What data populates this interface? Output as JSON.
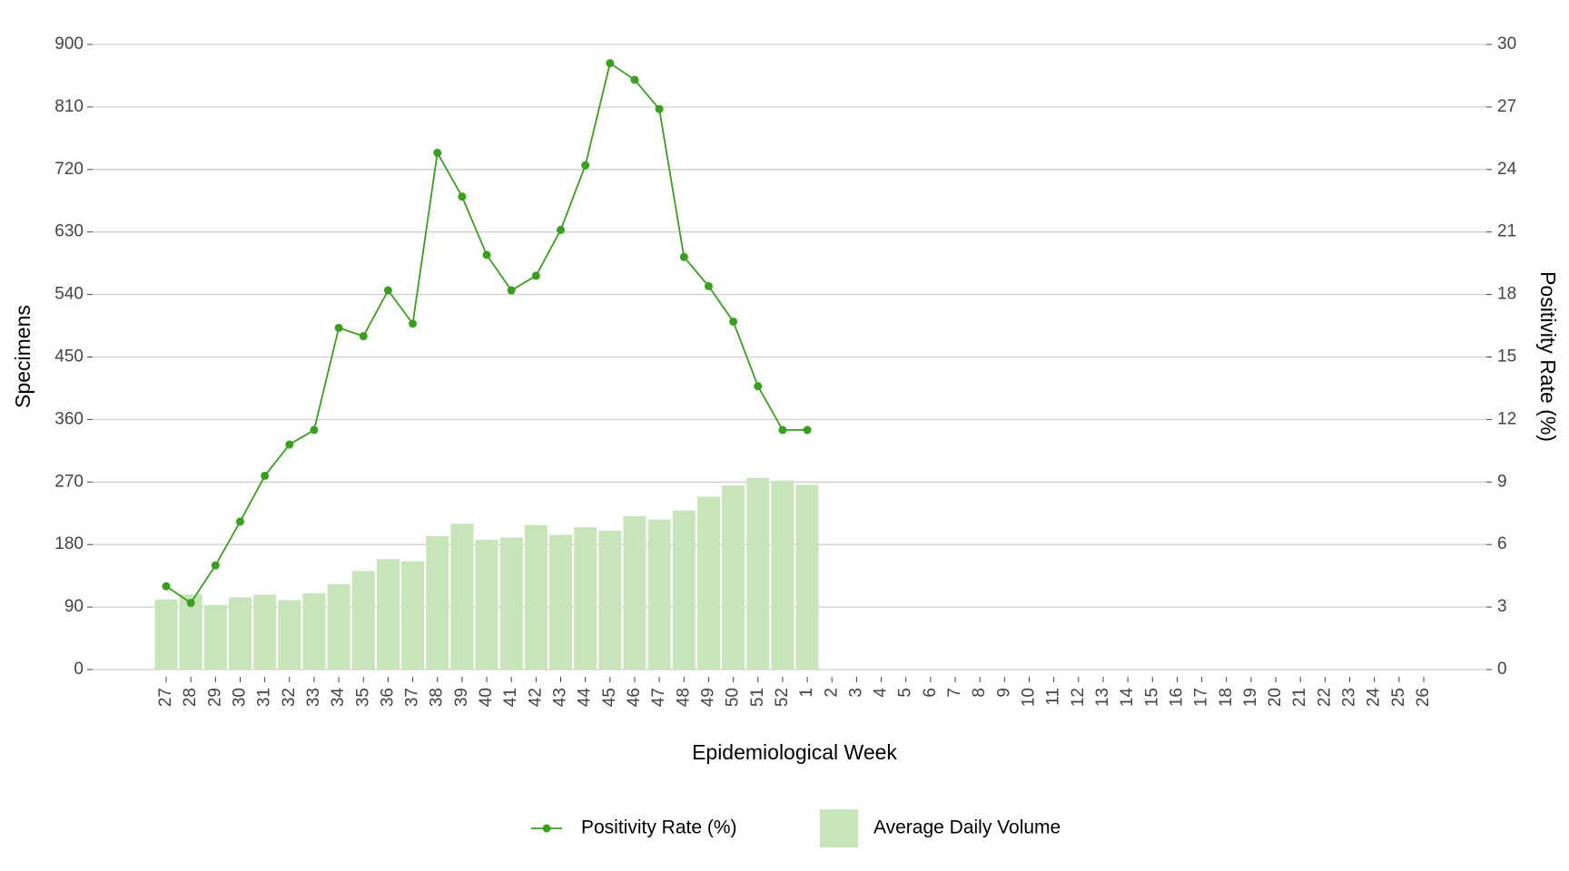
{
  "chart_data": {
    "type": "bar-line",
    "x_label": "Epidemiological Week",
    "y_label": "Specimens",
    "y2_label": "Positivity Rate (%)",
    "categories": [
      "27",
      "28",
      "29",
      "30",
      "31",
      "32",
      "33",
      "34",
      "35",
      "36",
      "37",
      "38",
      "39",
      "40",
      "41",
      "42",
      "43",
      "44",
      "45",
      "46",
      "47",
      "48",
      "49",
      "50",
      "51",
      "52",
      "1",
      "2",
      "3",
      "4",
      "5",
      "6",
      "7",
      "8",
      "9",
      "10",
      "11",
      "12",
      "13",
      "14",
      "15",
      "16",
      "17",
      "18",
      "19",
      "20",
      "21",
      "22",
      "23",
      "24",
      "25",
      "26"
    ],
    "series": [
      {
        "name": "Positivity Rate (%)",
        "type": "line",
        "axis": "y2",
        "color": "#3a9e1e",
        "values": [
          4.0,
          3.2,
          5.0,
          7.1,
          9.3,
          10.8,
          11.5,
          16.4,
          16.0,
          18.2,
          16.6,
          24.8,
          22.7,
          19.9,
          18.2,
          18.9,
          21.1,
          24.2,
          29.1,
          28.3,
          26.9,
          19.8,
          18.4,
          16.7,
          13.6,
          11.5,
          11.5,
          null,
          null,
          null,
          null,
          null,
          null,
          null,
          null,
          null,
          null,
          null,
          null,
          null,
          null,
          null,
          null,
          null,
          null,
          null,
          null,
          null,
          null,
          null,
          null,
          null
        ]
      },
      {
        "name": "Average Daily Volume",
        "type": "bar",
        "axis": "y",
        "color": "#c7e4ba",
        "values": [
          101,
          108,
          93,
          104,
          108,
          100,
          110,
          123,
          142,
          159,
          156,
          192,
          210,
          187,
          190,
          208,
          194,
          205,
          200,
          221,
          216,
          229,
          249,
          265,
          276,
          272,
          266,
          null,
          null,
          null,
          null,
          null,
          null,
          null,
          null,
          null,
          null,
          null,
          null,
          null,
          null,
          null,
          null,
          null,
          null,
          null,
          null,
          null,
          null,
          null,
          null,
          null
        ]
      }
    ],
    "ylim": [
      0,
      900
    ],
    "yticks": [
      0,
      90,
      180,
      270,
      360,
      450,
      540,
      630,
      720,
      810,
      900
    ],
    "y2lim": [
      0,
      30
    ],
    "y2ticks": [
      0,
      3,
      6,
      9,
      12,
      15,
      18,
      21,
      24,
      27,
      30
    ],
    "grid": true,
    "legend": "bottom"
  }
}
